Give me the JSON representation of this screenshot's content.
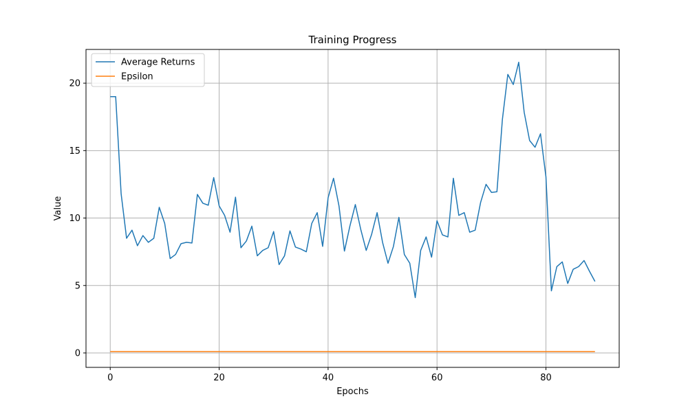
{
  "chart_data": {
    "type": "line",
    "title": "Training Progress",
    "xlabel": "Epochs",
    "ylabel": "Value",
    "xlim": [
      -4.45,
      93.45
    ],
    "ylim": [
      -1.07,
      22.5
    ],
    "xticks": [
      0,
      20,
      40,
      60,
      80
    ],
    "yticks": [
      0,
      5,
      10,
      15,
      20
    ],
    "grid": true,
    "legend_position": "top-left",
    "series": [
      {
        "name": "Average Returns",
        "color": "#1f77b4",
        "x": [
          0,
          1,
          2,
          3,
          4,
          5,
          6,
          7,
          8,
          9,
          10,
          11,
          12,
          13,
          14,
          15,
          16,
          17,
          18,
          19,
          20,
          21,
          22,
          23,
          24,
          25,
          26,
          27,
          28,
          29,
          30,
          31,
          32,
          33,
          34,
          35,
          36,
          37,
          38,
          39,
          40,
          41,
          42,
          43,
          44,
          45,
          46,
          47,
          48,
          49,
          50,
          51,
          52,
          53,
          54,
          55,
          56,
          57,
          58,
          59,
          60,
          61,
          62,
          63,
          64,
          65,
          66,
          67,
          68,
          69,
          70,
          71,
          72,
          73,
          74,
          75,
          76,
          77,
          78,
          79,
          80,
          81,
          82,
          83,
          84,
          85,
          86,
          87,
          88,
          89
        ],
        "values": [
          19.0,
          19.0,
          11.8,
          8.5,
          9.1,
          7.95,
          8.7,
          8.2,
          8.5,
          10.8,
          9.6,
          7.0,
          7.3,
          8.1,
          8.2,
          8.15,
          11.75,
          11.1,
          10.95,
          13.0,
          10.9,
          10.2,
          8.95,
          11.55,
          7.8,
          8.3,
          9.4,
          7.2,
          7.6,
          7.8,
          9.0,
          6.55,
          7.2,
          9.05,
          7.85,
          7.7,
          7.5,
          9.6,
          10.4,
          7.9,
          11.5,
          12.95,
          10.9,
          7.55,
          9.4,
          11.0,
          9.15,
          7.6,
          8.8,
          10.4,
          8.2,
          6.65,
          7.9,
          10.05,
          7.3,
          6.65,
          4.1,
          7.6,
          8.6,
          7.1,
          9.8,
          8.75,
          8.6,
          12.95,
          10.2,
          10.4,
          8.95,
          9.1,
          11.15,
          12.5,
          11.9,
          11.95,
          17.3,
          20.65,
          19.9,
          21.55,
          17.85,
          15.75,
          15.25,
          16.25,
          13.05,
          4.6,
          6.4,
          6.75,
          5.15,
          6.2,
          6.4,
          6.85,
          6.05,
          5.3
        ]
      },
      {
        "name": "Epsilon",
        "color": "#ff7f0e",
        "x": [
          0,
          89
        ],
        "values": [
          0.1,
          0.1
        ]
      }
    ]
  }
}
